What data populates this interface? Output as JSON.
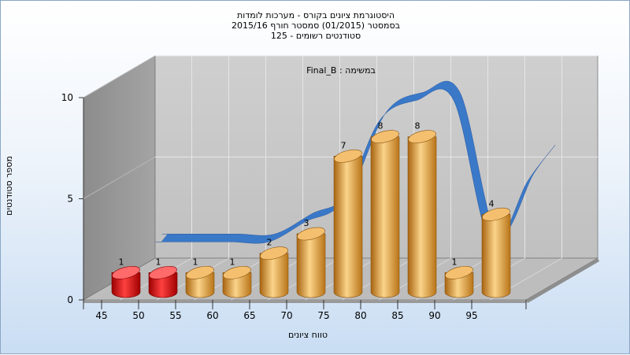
{
  "chart_data": {
    "type": "bar",
    "title_lines": [
      "היסטוגרמת ציונים בקורס - מערכות לומדות",
      "בסמסטר  (01/2015)  סמסטר חורף 2015/16",
      "סטודנטים רשומים - 125"
    ],
    "inner_title": "Final_B : במשימה",
    "xlabel": "טווח ציונים",
    "ylabel": "מספר סטודנטים",
    "categories": [
      "45",
      "50",
      "55",
      "60",
      "65",
      "70",
      "75",
      "80",
      "85",
      "90",
      "95"
    ],
    "values": [
      1,
      1,
      1,
      1,
      2,
      3,
      7,
      8,
      8,
      1,
      4
    ],
    "bar_colors": [
      "#e01010",
      "#e01010",
      "#e8a030",
      "#e8a030",
      "#e8a030",
      "#e8a030",
      "#e8a030",
      "#e8a030",
      "#e8a030",
      "#e8a030",
      "#e8a030"
    ],
    "y_ticks": [
      "0",
      "5",
      "10"
    ],
    "ylim": [
      0,
      10
    ],
    "curve_color": "#3a78c8",
    "grid": true
  }
}
